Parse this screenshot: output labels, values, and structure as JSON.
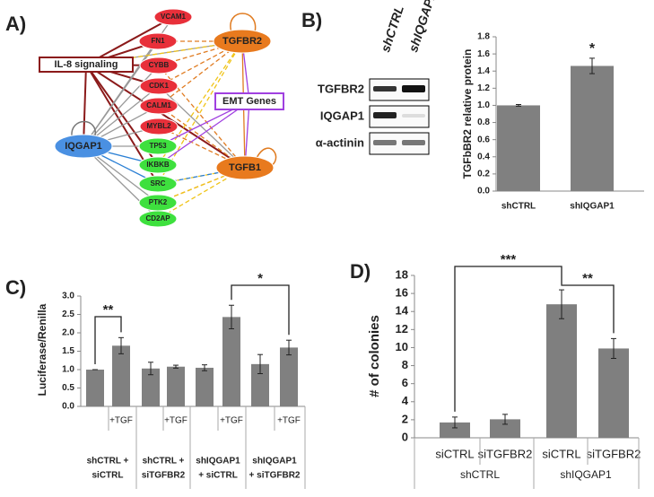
{
  "panel_labels": [
    "A)",
    "B)",
    "C)",
    "D)"
  ],
  "network": {
    "nodes": [
      "VCAM1",
      "FN1",
      "CYBB",
      "CDK1",
      "CALM1",
      "MYBL2",
      "TP53",
      "IKBKB",
      "SRC",
      "PTK2",
      "CD2AP",
      "TGFBR2",
      "TGFB1",
      "IQGAP1",
      "IL-8 signaling",
      "EMT Genes"
    ]
  },
  "blot": {
    "columns": [
      "shCTRL",
      "shIQGAP1"
    ],
    "rows": [
      "TGFBR2",
      "IQGAP1",
      "α-actinin"
    ]
  },
  "chart_data": [
    {
      "type": "bar",
      "y_label": "TGFbBR2 relative protein",
      "categories": [
        "shCTRL",
        "shIQGAP1"
      ],
      "values": [
        1.0,
        1.46
      ],
      "errors": [
        0.01,
        0.09
      ],
      "color": "#808080",
      "ylim": [
        0,
        1.8
      ],
      "yticks": [
        {
          "value": 0,
          "label": "0.0"
        },
        {
          "value": 0.2,
          "label": "0.2"
        },
        {
          "value": 0.4,
          "label": "0.4"
        },
        {
          "value": 0.6,
          "label": "0.6"
        },
        {
          "value": 0.8,
          "label": "0.8"
        },
        {
          "value": 1.0,
          "label": "1.0"
        },
        {
          "value": 1.2,
          "label": "1.2"
        },
        {
          "value": 1.4,
          "label": "1.4"
        },
        {
          "value": 1.6,
          "label": "1.6"
        },
        {
          "value": 1.8,
          "label": "1.8"
        }
      ],
      "annotations": [
        "*"
      ]
    },
    {
      "type": "bar",
      "y_label": "Luciferase/Renilla",
      "categories": [
        null,
        "+TGF",
        null,
        "+TGF",
        null,
        "+TGF",
        null,
        "+TGF"
      ],
      "groups": [
        [
          "shCTRL +",
          "siCTRL"
        ],
        [
          "shCTRL +",
          "siTGFBR2"
        ],
        [
          "shIQGAP1",
          "+ siCTRL"
        ],
        [
          "shIQGAP1",
          "+ siTGFBR2"
        ]
      ],
      "values": [
        1.0,
        1.65,
        1.03,
        1.08,
        1.05,
        2.43,
        1.15,
        1.6
      ],
      "errors": [
        0,
        0.22,
        0.17,
        0.04,
        0.08,
        0.32,
        0.26,
        0.2
      ],
      "color": "#808080",
      "ylim": [
        0,
        3
      ],
      "yticks": [
        {
          "value": 0,
          "label": "0.0"
        },
        {
          "value": 0.5,
          "label": "0.5"
        },
        {
          "value": 1,
          "label": "1.0"
        },
        {
          "value": 1.5,
          "label": "1.5"
        },
        {
          "value": 2,
          "label": "2.0"
        },
        {
          "value": 2.5,
          "label": "2.5"
        },
        {
          "value": 3,
          "label": "3.0"
        }
      ],
      "annotations": [
        "**",
        "*"
      ]
    },
    {
      "type": "bar",
      "y_label": "# of colonies",
      "categories": [
        "siCTRL",
        "siTGFBR2",
        "siCTRL",
        "siTGFBR2"
      ],
      "groups": [
        [
          "shCTRL"
        ],
        [
          "shIQGAP1"
        ]
      ],
      "values": [
        1.7,
        2.05,
        14.8,
        9.9
      ],
      "errors": [
        0.6,
        0.55,
        1.6,
        1.1
      ],
      "color": "#7f7f7f",
      "ylim": [
        0,
        18
      ],
      "yticks": [
        0,
        2,
        4,
        6,
        8,
        10,
        12,
        14,
        16,
        18
      ],
      "annotations": [
        "***",
        "**"
      ]
    }
  ]
}
